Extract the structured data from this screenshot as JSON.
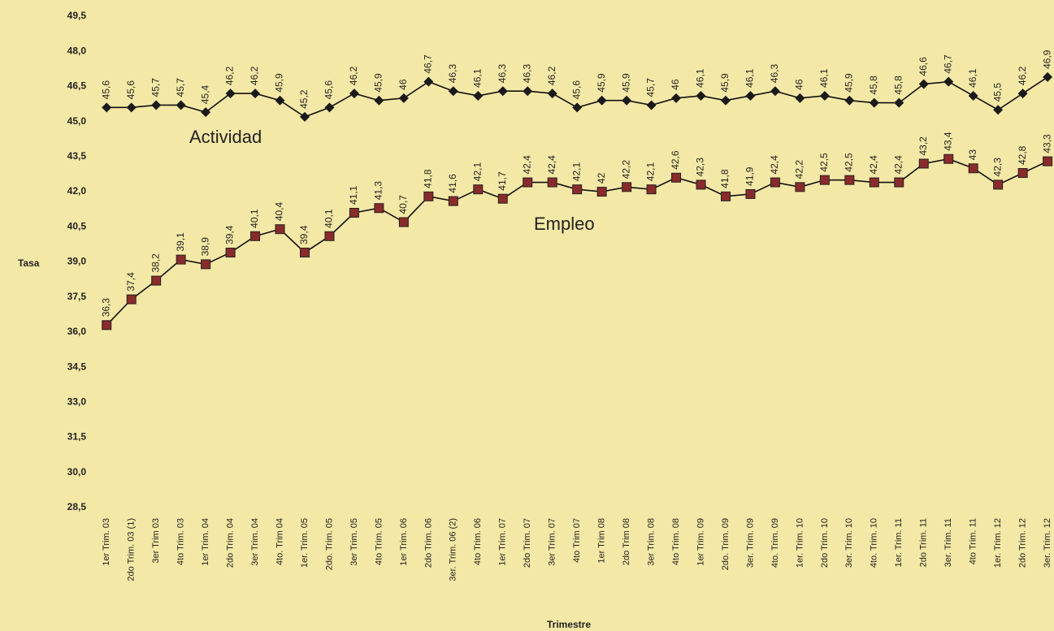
{
  "chart_data": {
    "type": "line",
    "ylabel": "Tasa",
    "xlabel": "Trimestre",
    "categories": [
      "1er Trim. 03",
      "2do Trim. 03 (1)",
      "3er Trim 03",
      "4to Trim. 03",
      "1er Trim. 04",
      "2do Trim. 04",
      "3er Trim. 04",
      "4to. Trim 04",
      "1er. Trim. 05",
      "2do. Trim. 05",
      "3er Trim. 05",
      "4to Trim. 05",
      "1er Trim. 06",
      "2do Trim. 06",
      "3er. Trim. 06 (2)",
      "4to Trim. 06",
      "1er Trim. 07",
      "2do Trim. 07",
      "3er Trim. 07",
      "4to Trim 07",
      "1er Trim 08",
      "2do Trim 08",
      "3er Trim. 08",
      "4to Trim. 08",
      "1er Trim. 09",
      "2do. Trim. 09",
      "3er. Trim. 09",
      "4to. Trim. 09",
      "1er. Trim. 10",
      "2do Trim. 10",
      "3er. Trim. 10",
      "4to. Trim. 10",
      "1er. Trim. 11",
      "2do Trim. 11",
      "3er. Trim. 11",
      "4to Trim. 11",
      "1er. Trim. 12",
      "2do Trim. 12",
      "3er. Trim. 12"
    ],
    "series": [
      {
        "name": "Actividad",
        "color": "#1a1a1a",
        "marker": "diamond",
        "values": [
          45.6,
          45.6,
          45.7,
          45.7,
          45.4,
          46.2,
          46.2,
          45.9,
          45.2,
          45.6,
          46.2,
          45.9,
          46,
          46.7,
          46.3,
          46.1,
          46.3,
          46.3,
          46.2,
          45.6,
          45.9,
          45.9,
          45.7,
          46,
          46.1,
          45.9,
          46.1,
          46.3,
          46,
          46.1,
          45.9,
          45.8,
          45.8,
          46.6,
          46.7,
          46.1,
          45.5,
          46.2,
          46.9
        ],
        "value_labels": [
          "45,6",
          "45,6",
          "45,7",
          "45,7",
          "45,4",
          "46,2",
          "46,2",
          "45,9",
          "45,2",
          "45,6",
          "46,2",
          "45,9",
          "46",
          "46,7",
          "46,3",
          "46,1",
          "46,3",
          "46,3",
          "46,2",
          "45,6",
          "45,9",
          "45,9",
          "45,7",
          "46",
          "46,1",
          "45,9",
          "46,1",
          "46,3",
          "46",
          "46,1",
          "45,9",
          "45,8",
          "45,8",
          "46,6",
          "46,7",
          "46,1",
          "45,5",
          "46,2",
          "46,9"
        ]
      },
      {
        "name": "Empleo",
        "color": "#8a2b2b",
        "marker": "square",
        "values": [
          36.3,
          37.4,
          38.2,
          39.1,
          38.9,
          39.4,
          40.1,
          40.4,
          39.4,
          40.1,
          41.1,
          41.3,
          40.7,
          41.8,
          41.6,
          42.1,
          41.7,
          42.4,
          42.4,
          42.1,
          42,
          42.2,
          42.1,
          42.6,
          42.3,
          41.8,
          41.9,
          42.4,
          42.2,
          42.5,
          42.5,
          42.4,
          42.4,
          43.2,
          43.4,
          43,
          42.3,
          42.8,
          43.3
        ],
        "value_labels": [
          "36,3",
          "37,4",
          "38,2",
          "39,1",
          "38,9",
          "39,4",
          "40,1",
          "40,4",
          "39,4",
          "40,1",
          "41,1",
          "41,3",
          "40,7",
          "41,8",
          "41,6",
          "42,1",
          "41,7",
          "42,4",
          "42,4",
          "42,1",
          "42",
          "42,2",
          "42,1",
          "42,6",
          "42,3",
          "41,8",
          "41,9",
          "42,4",
          "42,2",
          "42,5",
          "42,5",
          "42,4",
          "42,4",
          "43,2",
          "43,4",
          "43",
          "42,3",
          "42,8",
          "43,3"
        ]
      }
    ],
    "ylim": [
      28.5,
      49.5
    ],
    "yticks": [
      {
        "value": 28.5,
        "label": "28,5"
      },
      {
        "value": 30,
        "label": "30,0"
      },
      {
        "value": 31.5,
        "label": "31,5"
      },
      {
        "value": 33,
        "label": "33,0"
      },
      {
        "value": 34.5,
        "label": "34,5"
      },
      {
        "value": 36,
        "label": "36,0"
      },
      {
        "value": 37.5,
        "label": "37,5"
      },
      {
        "value": 39,
        "label": "39,0"
      },
      {
        "value": 40.5,
        "label": "40,5"
      },
      {
        "value": 42,
        "label": "42,0"
      },
      {
        "value": 43.5,
        "label": "43,5"
      },
      {
        "value": 45,
        "label": "45,0"
      },
      {
        "value": 46.5,
        "label": "46,5"
      },
      {
        "value": 48,
        "label": "48,0"
      },
      {
        "value": 49.5,
        "label": "49,5"
      }
    ],
    "grid": false
  }
}
